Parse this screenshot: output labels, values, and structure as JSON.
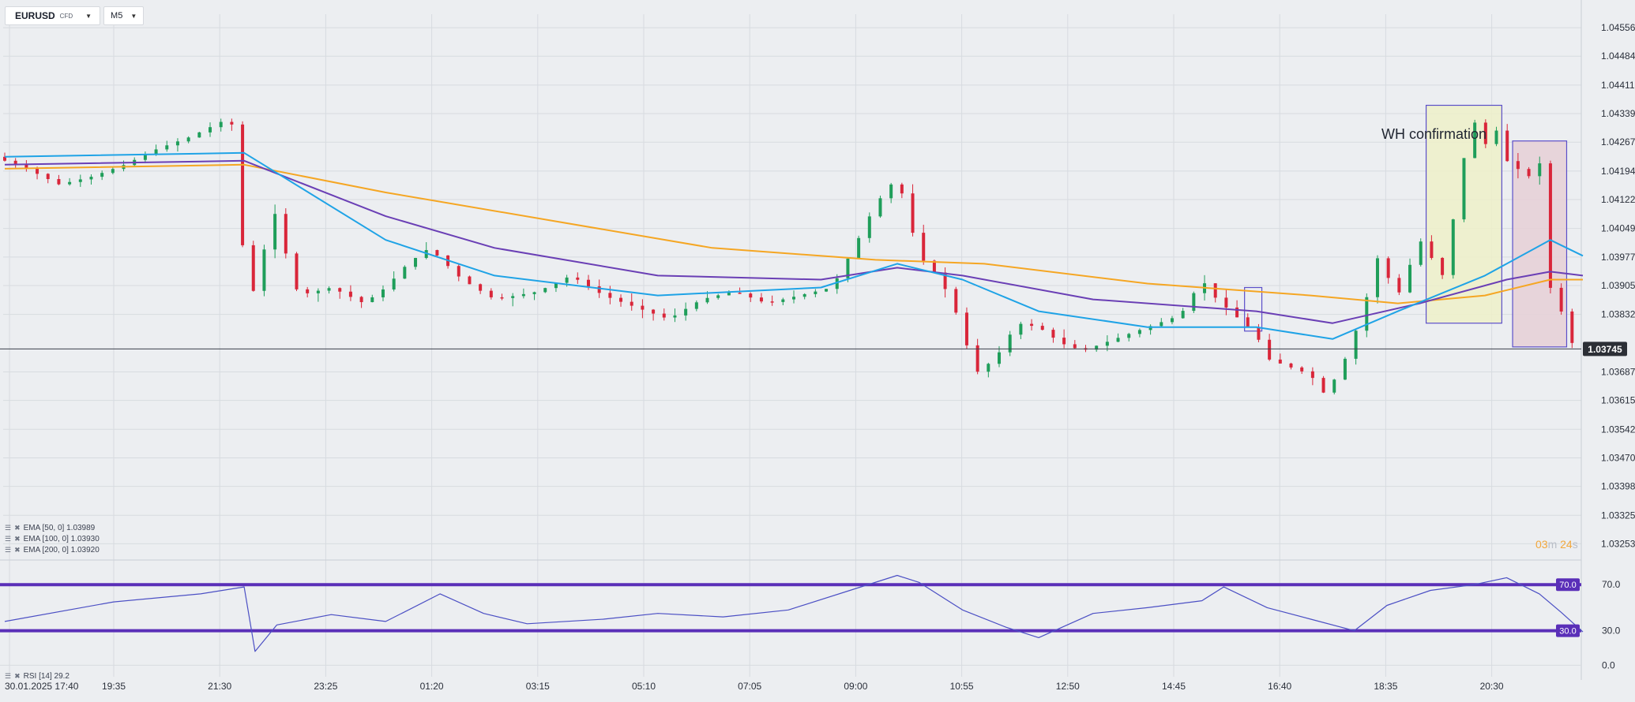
{
  "header": {
    "symbol": "EURUSD",
    "instrument_type": "CFD",
    "timeframe": "M5",
    "caret_icon": "caret-down-icon"
  },
  "indicators": {
    "ema50": {
      "label": "EMA  [50,  0]  1.03989",
      "color": "#1fa3e6"
    },
    "ema100": {
      "label": "EMA  [100,  0]  1.03930",
      "color": "#6a3fb5"
    },
    "ema200": {
      "label": "EMA  [200,  0]  1.03920",
      "color": "#f5a623"
    },
    "rsi": {
      "label": "RSI  [14]  29.2",
      "color": "#4b4fc4"
    },
    "legend_icons": [
      "settings-icon",
      "close-icon"
    ]
  },
  "annotation": {
    "text": "WH confirmation"
  },
  "timer": {
    "minutes": "03",
    "m": "m",
    "seconds": "24",
    "s": "s"
  },
  "chart_data": [
    {
      "type": "candlestick",
      "y_axis_ticks": [
        "1.04556",
        "1.04484",
        "1.04411",
        "1.04339",
        "1.04267",
        "1.04194",
        "1.04122",
        "1.04049",
        "1.03977",
        "1.03905",
        "1.03832",
        "1.03687",
        "1.03615",
        "1.03542",
        "1.03470",
        "1.03398",
        "1.03325",
        "1.03253"
      ],
      "ylim": [
        1.0322,
        1.0459
      ],
      "current_price": "1.03745",
      "current_price_value": 1.03745,
      "x_axis_ticks": [
        "30.01.2025  17:40",
        "19:35",
        "21:30",
        "23:25",
        "01:20",
        "03:15",
        "05:10",
        "07:05",
        "09:00",
        "10:55",
        "12:50",
        "14:45",
        "16:40",
        "18:35",
        "20:30"
      ],
      "price_path": [
        [
          0,
          1.0423
        ],
        [
          3,
          1.042
        ],
        [
          6,
          1.0416
        ],
        [
          9,
          1.0418
        ],
        [
          12,
          1.0421
        ],
        [
          15,
          1.0425
        ],
        [
          18,
          1.0428
        ],
        [
          21,
          1.0432
        ],
        [
          22,
          1.0431
        ],
        [
          23,
          1.0395
        ],
        [
          24,
          1.0388
        ],
        [
          25,
          1.0402
        ],
        [
          26,
          1.041
        ],
        [
          27,
          1.0396
        ],
        [
          28,
          1.0388
        ],
        [
          31,
          1.039
        ],
        [
          34,
          1.0386
        ],
        [
          36,
          1.039
        ],
        [
          38,
          1.0396
        ],
        [
          40,
          1.04
        ],
        [
          43,
          1.0392
        ],
        [
          46,
          1.0387
        ],
        [
          50,
          1.0389
        ],
        [
          53,
          1.0393
        ],
        [
          56,
          1.0388
        ],
        [
          59,
          1.0385
        ],
        [
          62,
          1.0382
        ],
        [
          65,
          1.0387
        ],
        [
          68,
          1.0389
        ],
        [
          71,
          1.0386
        ],
        [
          74,
          1.0388
        ],
        [
          77,
          1.039
        ],
        [
          79,
          1.04
        ],
        [
          81,
          1.0411
        ],
        [
          83,
          1.0418
        ],
        [
          84,
          1.0408
        ],
        [
          85,
          1.0398
        ],
        [
          87,
          1.0392
        ],
        [
          89,
          1.038
        ],
        [
          90,
          1.0368
        ],
        [
          92,
          1.0372
        ],
        [
          94,
          1.0381
        ],
        [
          96,
          1.038
        ],
        [
          98,
          1.0376
        ],
        [
          100,
          1.0374
        ],
        [
          103,
          1.0377
        ],
        [
          106,
          1.038
        ],
        [
          109,
          1.0383
        ],
        [
          111,
          1.0392
        ],
        [
          112,
          1.0388
        ],
        [
          114,
          1.0383
        ],
        [
          116,
          1.0378
        ],
        [
          117,
          1.0372
        ],
        [
          119,
          1.037
        ],
        [
          121,
          1.0368
        ],
        [
          122,
          1.0363
        ],
        [
          123,
          1.0366
        ],
        [
          124,
          1.0371
        ],
        [
          125,
          1.0378
        ],
        [
          126,
          1.0386
        ],
        [
          127,
          1.0398
        ],
        [
          128,
          1.0393
        ],
        [
          129,
          1.0388
        ],
        [
          130,
          1.0395
        ],
        [
          131,
          1.0402
        ],
        [
          132,
          1.0398
        ],
        [
          133,
          1.0392
        ],
        [
          134,
          1.0406
        ],
        [
          135,
          1.0422
        ],
        [
          136,
          1.0432
        ],
        [
          137,
          1.0426
        ],
        [
          138,
          1.043
        ],
        [
          139,
          1.0422
        ],
        [
          140,
          1.042
        ],
        [
          141,
          1.0418
        ],
        [
          142,
          1.0422
        ],
        [
          143,
          1.039
        ],
        [
          144,
          1.0384
        ],
        [
          145,
          1.0376
        ]
      ],
      "ema50": [
        [
          0,
          1.0423
        ],
        [
          22,
          1.0424
        ],
        [
          35,
          1.0402
        ],
        [
          45,
          1.0393
        ],
        [
          60,
          1.0388
        ],
        [
          75,
          1.039
        ],
        [
          82,
          1.0396
        ],
        [
          88,
          1.0392
        ],
        [
          95,
          1.0384
        ],
        [
          105,
          1.038
        ],
        [
          115,
          1.038
        ],
        [
          122,
          1.0377
        ],
        [
          128,
          1.0384
        ],
        [
          136,
          1.0393
        ],
        [
          142,
          1.0402
        ],
        [
          145,
          1.0398
        ]
      ],
      "ema100": [
        [
          0,
          1.0421
        ],
        [
          22,
          1.0422
        ],
        [
          35,
          1.0408
        ],
        [
          45,
          1.04
        ],
        [
          60,
          1.0393
        ],
        [
          75,
          1.0392
        ],
        [
          82,
          1.0395
        ],
        [
          88,
          1.0393
        ],
        [
          100,
          1.0387
        ],
        [
          115,
          1.0384
        ],
        [
          122,
          1.0381
        ],
        [
          130,
          1.0386
        ],
        [
          138,
          1.0392
        ],
        [
          142,
          1.0394
        ],
        [
          145,
          1.0393
        ]
      ],
      "ema200": [
        [
          0,
          1.042
        ],
        [
          22,
          1.0421
        ],
        [
          35,
          1.0414
        ],
        [
          50,
          1.0407
        ],
        [
          65,
          1.04
        ],
        [
          80,
          1.0397
        ],
        [
          90,
          1.0396
        ],
        [
          105,
          1.0391
        ],
        [
          120,
          1.0388
        ],
        [
          128,
          1.0386
        ],
        [
          136,
          1.0388
        ],
        [
          142,
          1.0392
        ],
        [
          145,
          1.0392
        ]
      ],
      "highlight_zones": [
        {
          "from": 131.5,
          "to": 138.5,
          "high": 1.0436,
          "low": 1.0381,
          "fill": "#eef0c9",
          "stroke": "#5b4fc9"
        },
        {
          "from": 139.5,
          "to": 144.5,
          "high": 1.0427,
          "low": 1.0375,
          "fill": "#e6cfd6",
          "stroke": "#5b4fc9"
        },
        {
          "from": 114.7,
          "to": 116.3,
          "high": 1.039,
          "low": 1.0379,
          "fill": "none",
          "stroke": "#5b4fc9"
        }
      ]
    },
    {
      "type": "line",
      "name": "RSI [14]",
      "ylim": [
        -10,
        90
      ],
      "y_axis_ticks": [
        "70.0",
        "30.0",
        "0.0"
      ],
      "overbought": "70.0",
      "oversold": "30.0",
      "overbought_value": 70,
      "oversold_value": 30,
      "values": [
        [
          0,
          38
        ],
        [
          10,
          55
        ],
        [
          18,
          62
        ],
        [
          22,
          68
        ],
        [
          23,
          12
        ],
        [
          25,
          35
        ],
        [
          30,
          44
        ],
        [
          35,
          38
        ],
        [
          40,
          62
        ],
        [
          44,
          45
        ],
        [
          48,
          36
        ],
        [
          55,
          40
        ],
        [
          60,
          45
        ],
        [
          66,
          42
        ],
        [
          72,
          48
        ],
        [
          78,
          66
        ],
        [
          82,
          78
        ],
        [
          84,
          72
        ],
        [
          88,
          48
        ],
        [
          92,
          33
        ],
        [
          95,
          24
        ],
        [
          100,
          45
        ],
        [
          105,
          50
        ],
        [
          110,
          56
        ],
        [
          112,
          68
        ],
        [
          116,
          50
        ],
        [
          120,
          40
        ],
        [
          124,
          30
        ],
        [
          127,
          52
        ],
        [
          131,
          65
        ],
        [
          135,
          70
        ],
        [
          138,
          76
        ],
        [
          141,
          62
        ],
        [
          143,
          46
        ],
        [
          145,
          29
        ]
      ]
    }
  ]
}
